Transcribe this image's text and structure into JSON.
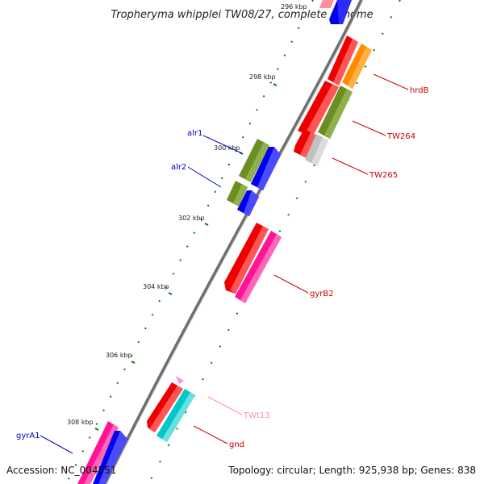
{
  "title": "Tropheryma whipplei TW08/27, complete genome",
  "footer": {
    "accession": "Accession: NC_004551",
    "summary": "Topology: circular; Length: 925,938 bp; Genes: 838"
  },
  "ticks": [
    "296 kbp",
    "298 kbp",
    "300 kbp",
    "302 kbp",
    "304 kbp",
    "306 kbp",
    "308 kbp"
  ],
  "gene_labels": [
    {
      "name": "hrdB",
      "color": "#cc0000"
    },
    {
      "name": "TW264",
      "color": "#cc0000"
    },
    {
      "name": "TW265",
      "color": "#cc0000"
    },
    {
      "name": "alr1",
      "color": "#0000cc"
    },
    {
      "name": "alr2",
      "color": "#0000cc"
    },
    {
      "name": "gyrB2",
      "color": "#cc0000"
    },
    {
      "name": "TWt13",
      "color": "#ff88bb"
    },
    {
      "name": "gnd",
      "color": "#cc0000"
    },
    {
      "name": "gyrA1",
      "color": "#0000cc"
    }
  ],
  "colors": {
    "red_gene": "#ee0000",
    "blue_gene": "#0000ee",
    "green_gene": "#6b8e23",
    "orange_gene": "#ff8c00",
    "magenta_gene": "#ff1493",
    "cyan_gene": "#00c8c8",
    "gray_gene": "#c0c0c0",
    "backbone": "#808080",
    "tick_dots": "#006400"
  }
}
